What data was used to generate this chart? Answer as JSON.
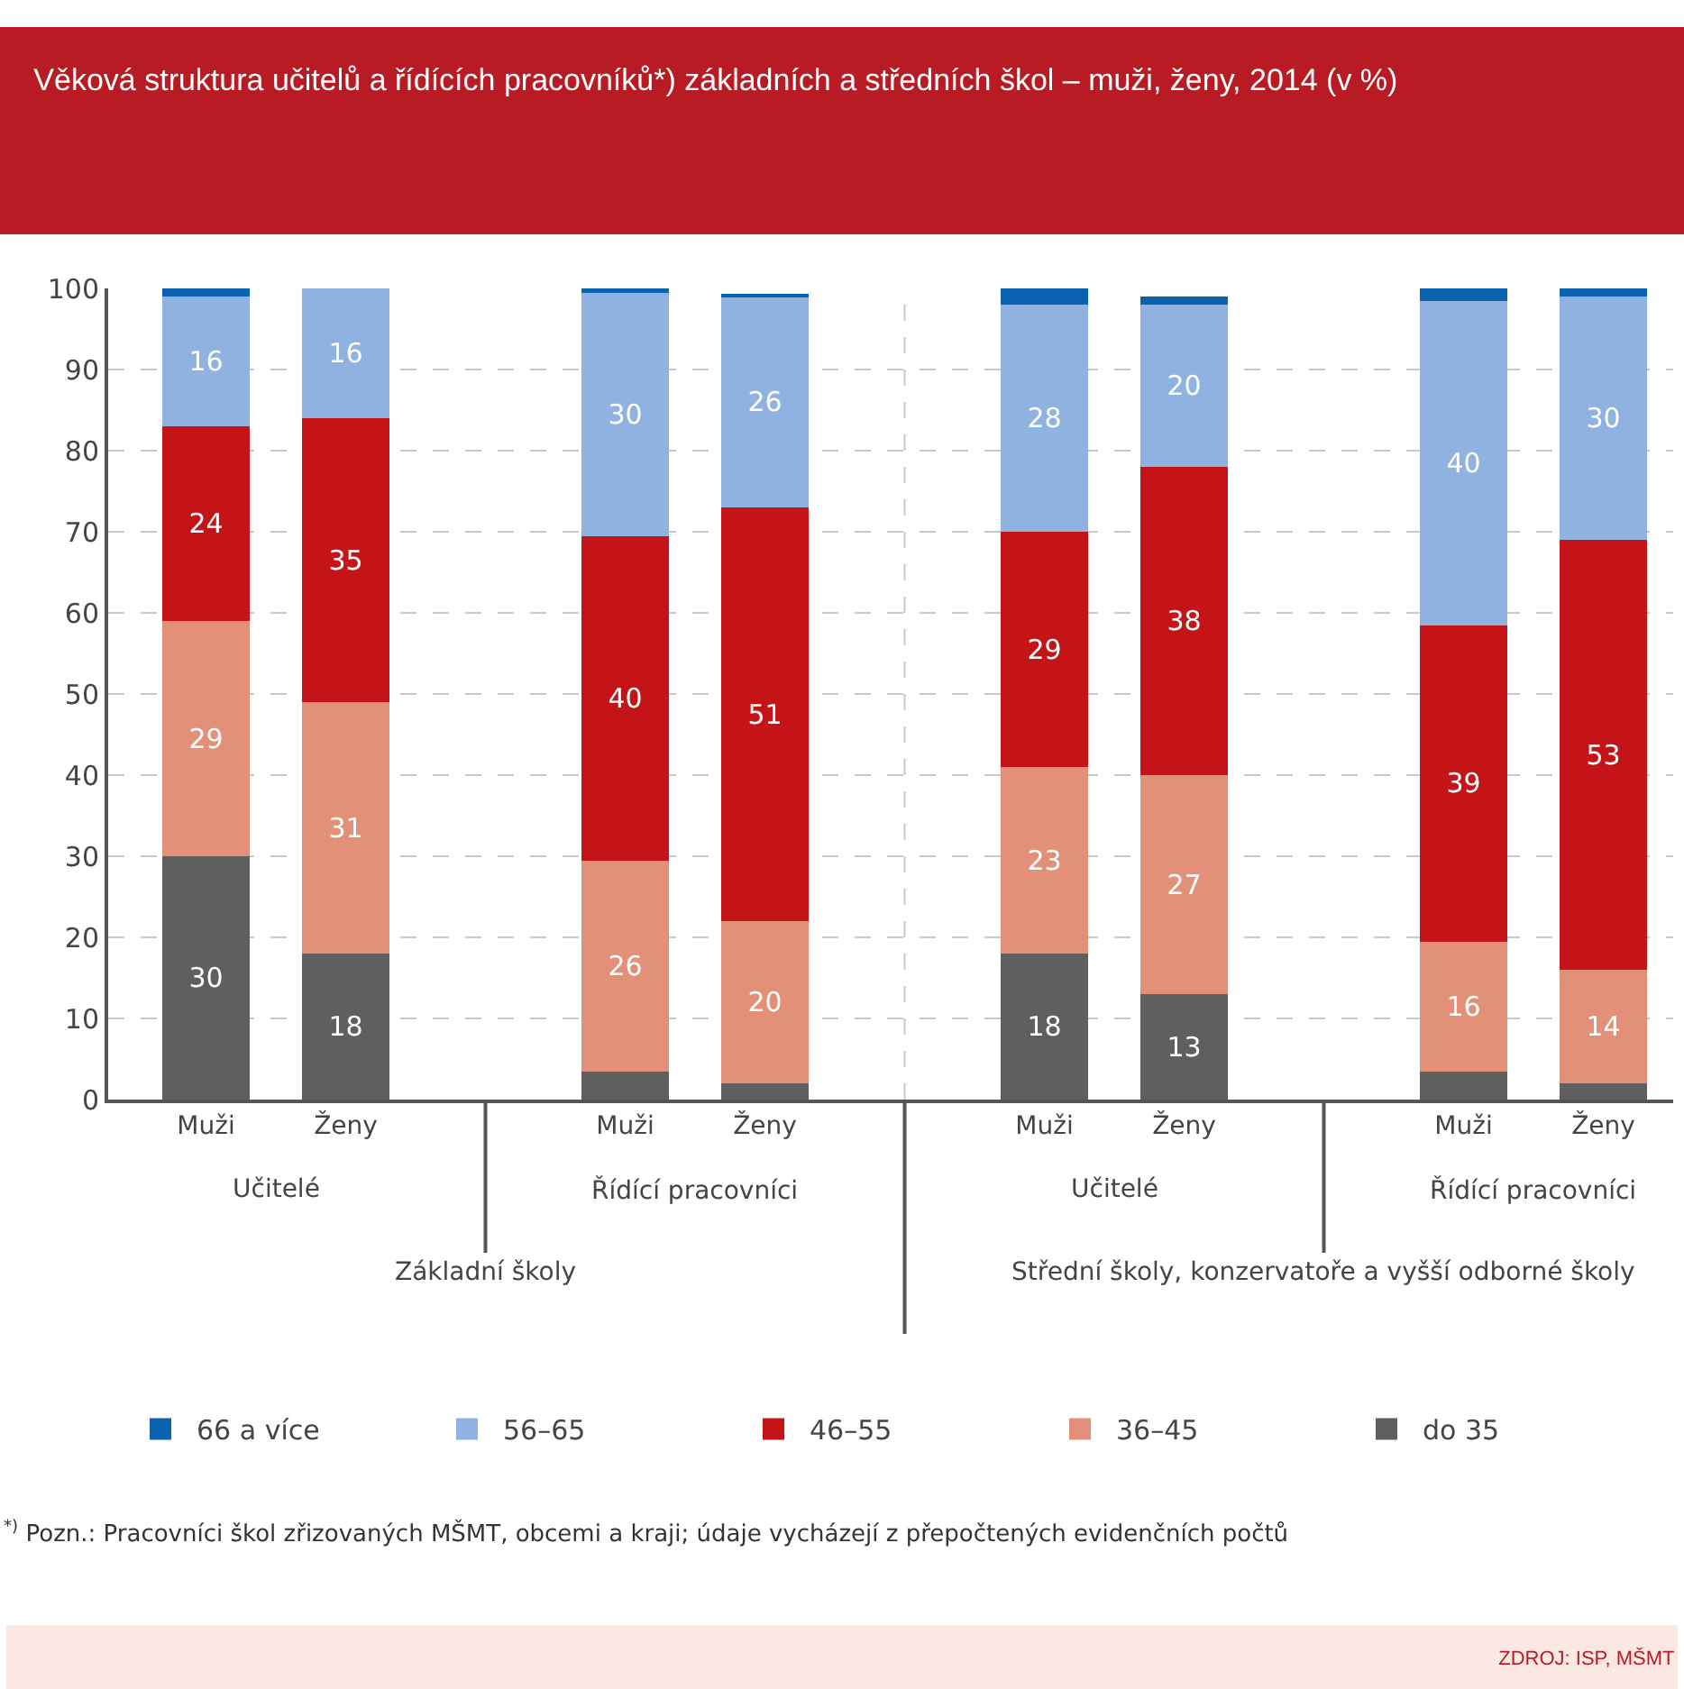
{
  "chart_data": {
    "type": "bar",
    "stacked": true,
    "title": "Věková struktura učitelů a řídících pracovníků*) základních a středních škol – muži, ženy, 2014 (v %)",
    "categories": [
      "Muži",
      "Ženy",
      "Muži",
      "Ženy",
      "Muži",
      "Ženy",
      "Muži",
      "Ženy"
    ],
    "series": [
      {
        "name": "do 35",
        "color": "#5f5f5f",
        "values": [
          30,
          18,
          3.5,
          2,
          18,
          13,
          3.5,
          2
        ],
        "value_labels": [
          "30",
          "18",
          null,
          null,
          "18",
          "13",
          null,
          null
        ]
      },
      {
        "name": "36–45",
        "color": "#e39079",
        "values": [
          29,
          31,
          26,
          20,
          23,
          27,
          16,
          14
        ],
        "value_labels": [
          "29",
          "31",
          "26",
          "20",
          "23",
          "27",
          "16",
          "14"
        ]
      },
      {
        "name": "46–55",
        "color": "#c41418",
        "values": [
          24,
          35,
          40,
          51,
          29,
          38,
          39,
          53
        ],
        "value_labels": [
          "24",
          "35",
          "40",
          "51",
          "29",
          "38",
          "39",
          "53"
        ]
      },
      {
        "name": "56–65",
        "color": "#8fb2e0",
        "values": [
          16,
          16,
          30,
          26,
          28,
          20,
          40,
          30
        ],
        "value_labels": [
          "16",
          "16",
          "30",
          "26",
          "28",
          "20",
          "40",
          "30"
        ]
      },
      {
        "name": "66 a více",
        "color": "#0b62b0",
        "values": [
          1,
          0,
          0.5,
          0.3,
          2,
          1,
          1.5,
          1
        ],
        "value_labels": [
          null,
          null,
          null,
          null,
          null,
          null,
          null,
          null
        ]
      }
    ],
    "ylim": [
      0,
      100
    ],
    "yticks": [
      0,
      10,
      20,
      30,
      40,
      50,
      60,
      70,
      80,
      90,
      100
    ],
    "grid": "y",
    "legend": "bottom",
    "annotations": [
      "Učitelé",
      "Řídící pracovníci",
      "Učitelé",
      "Řídící pracovníci",
      "Základní školy",
      "Střední školy, konzervatoře a vyšší odborné školy",
      "$^{*)}$ Pozn.: Pracovníci škol zřizovaných MŠMT, obcemi a kraji; údaje vycházejí z přepočtených evidenčních počtů",
      "ZDROJ: ISP, MŠMT"
    ]
  }
}
